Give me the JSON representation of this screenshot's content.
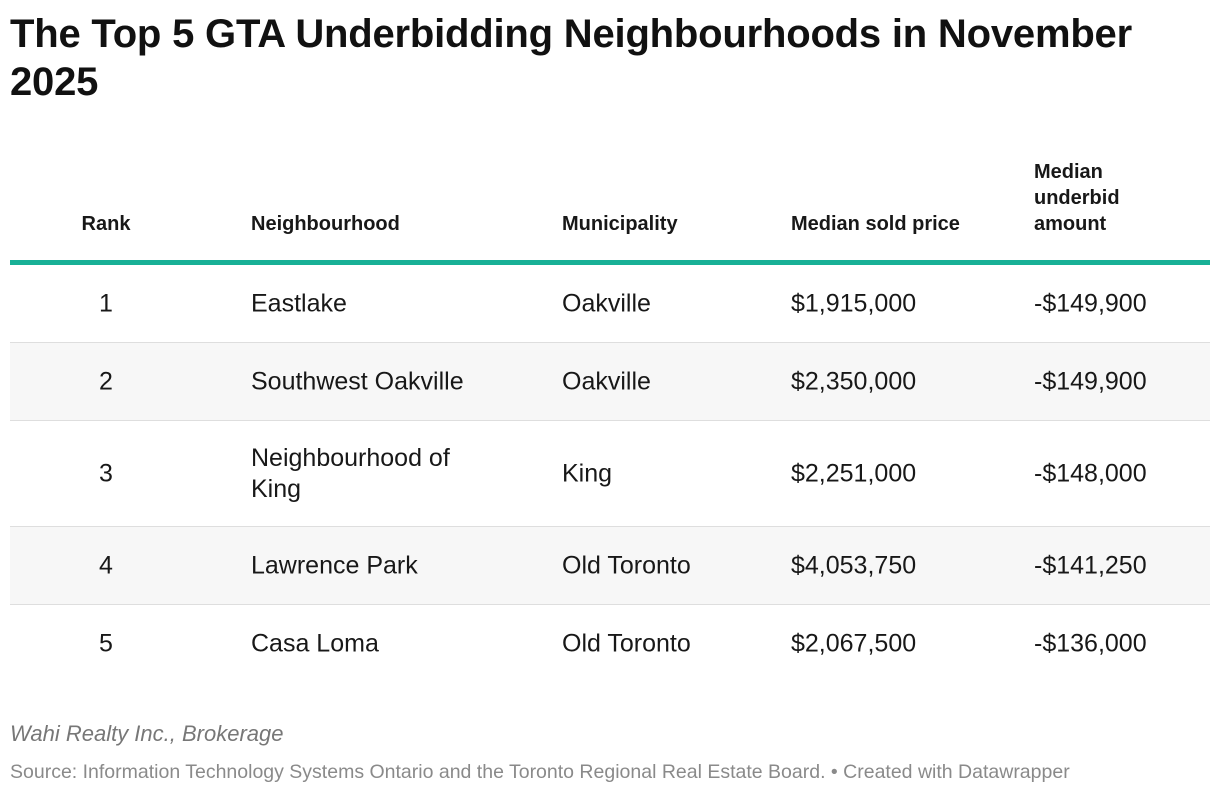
{
  "title": "The Top 5 GTA Underbidding Neighbourhoods in November 2025",
  "chart_data": {
    "type": "table",
    "title": "The Top 5 GTA Underbidding Neighbourhoods in November 2025",
    "columns": [
      "Rank",
      "Neighbourhood",
      "Municipality",
      "Median sold price",
      "Median underbid amount"
    ],
    "rows": [
      {
        "rank": "1",
        "neighbourhood": "Eastlake",
        "municipality": "Oakville",
        "median_sold_price": "$1,915,000",
        "median_underbid": "-$149,900"
      },
      {
        "rank": "2",
        "neighbourhood": "Southwest Oakville",
        "municipality": "Oakville",
        "median_sold_price": "$2,350,000",
        "median_underbid": "-$149,900"
      },
      {
        "rank": "3",
        "neighbourhood": "Neighbourhood of King",
        "municipality": "King",
        "median_sold_price": "$2,251,000",
        "median_underbid": "-$148,000"
      },
      {
        "rank": "4",
        "neighbourhood": "Lawrence Park",
        "municipality": "Old Toronto",
        "median_sold_price": "$4,053,750",
        "median_underbid": "-$141,250"
      },
      {
        "rank": "5",
        "neighbourhood": "Casa Loma",
        "municipality": "Old Toronto",
        "median_sold_price": "$2,067,500",
        "median_underbid": "-$136,000"
      }
    ]
  },
  "footer": {
    "note": "Wahi Realty Inc., Brokerage",
    "source": "Source: Information Technology Systems Ontario and the Toronto Regional Real Estate Board. • Created with Datawrapper"
  },
  "colors": {
    "accent_rule": "#18b096",
    "alt_row": "#f7f7f7"
  }
}
